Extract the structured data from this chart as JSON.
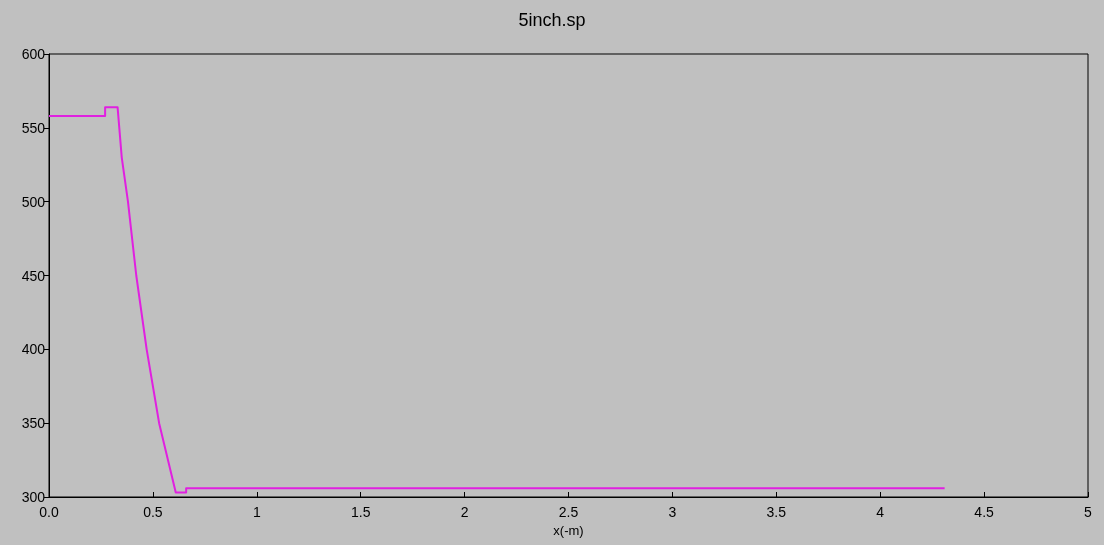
{
  "chart_data": {
    "type": "line",
    "title": "5inch.sp",
    "xlabel": "x(-m)",
    "x": [
      0,
      0.27,
      0.27,
      0.33,
      0.35,
      0.38,
      0.42,
      0.47,
      0.53,
      0.61,
      0.66,
      0.66,
      4.31
    ],
    "series": [
      {
        "color": "#e020e0",
        "values": [
          558,
          558,
          564,
          564,
          530,
          500,
          450,
          400,
          350,
          303,
          303,
          306,
          306
        ]
      }
    ],
    "xlim": [
      0,
      5
    ],
    "xticks": [
      {
        "value": 0,
        "label": "0.0"
      },
      0.5,
      1,
      1.5,
      2,
      2.5,
      3,
      3.5,
      4,
      4.5,
      5
    ],
    "ylim": [
      300,
      600
    ],
    "yticks": [
      300,
      350,
      400,
      450,
      500,
      550,
      600
    ],
    "grid": false,
    "marker": "none",
    "line_style": "solid"
  }
}
